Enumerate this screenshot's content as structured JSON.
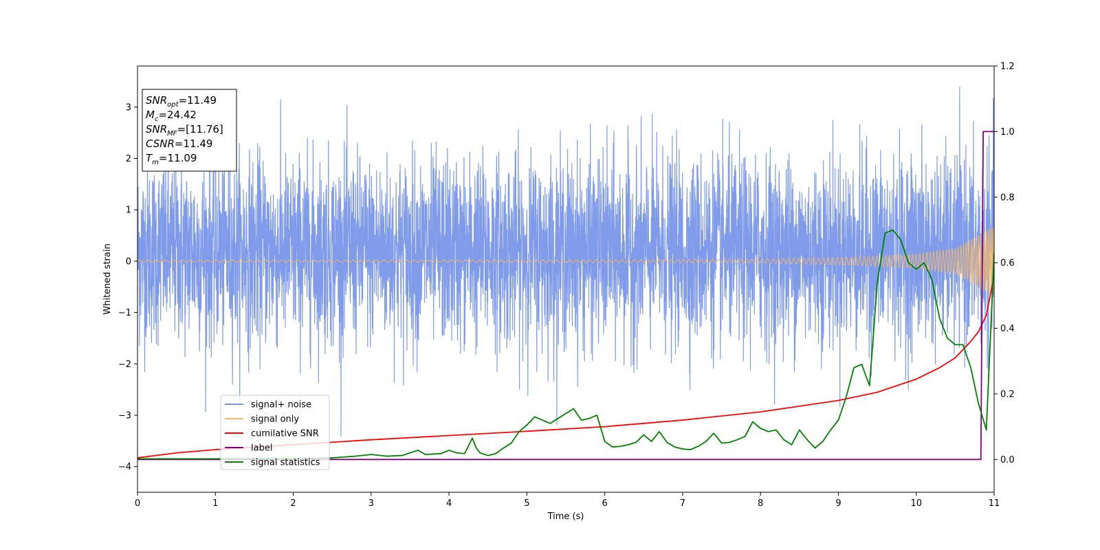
{
  "chart_data": {
    "type": "line",
    "xlabel": "Time (s)",
    "ylabel": "Whitened strain",
    "xlim": [
      0,
      11
    ],
    "ylim_left": [
      -4.5,
      3.8
    ],
    "ylim_right": [
      -0.1,
      1.2
    ],
    "x_ticks": [
      "0",
      "1",
      "2",
      "3",
      "4",
      "5",
      "6",
      "7",
      "8",
      "9",
      "10",
      "11"
    ],
    "y_ticks_left": [
      "3",
      "2",
      "1",
      "0",
      "−1",
      "−2",
      "−3",
      "−4"
    ],
    "y_ticks_right": [
      "1.2",
      "1.0",
      "0.8",
      "0.6",
      "0.4",
      "0.2",
      "0.0"
    ],
    "legend_position": "lower-left",
    "annotation": [
      {
        "main": "SNR",
        "sub": "opt",
        "value": "=11.49"
      },
      {
        "main": "M",
        "sub": "c",
        "value": "=24.42"
      },
      {
        "main": "SNR",
        "sub": "MF",
        "value": "=[11.76]"
      },
      {
        "main": "CSNR",
        "sub": "",
        "value": "=11.49"
      },
      {
        "main": "T",
        "sub": "m",
        "value": "=11.09"
      }
    ],
    "series": [
      {
        "name": "signal+ noise",
        "color": "#7896e8",
        "axis": "left",
        "description": "noisy whitened strain, roughly uniform band between about -2.5 and 3.4"
      },
      {
        "name": "signal only",
        "color": "#f5b86a",
        "axis": "left",
        "envelope": {
          "x": [
            0,
            3,
            6,
            8,
            9,
            10,
            10.5,
            11
          ],
          "amp": [
            0.02,
            0.02,
            0.03,
            0.04,
            0.07,
            0.14,
            0.25,
            0.68
          ]
        }
      },
      {
        "name": "cumilative SNR",
        "color": "#ff0000",
        "axis": "right",
        "x": [
          0,
          0.5,
          1,
          2,
          3,
          4,
          5,
          6,
          7,
          8,
          9,
          9.5,
          10,
          10.3,
          10.5,
          10.7,
          10.8,
          10.9,
          11
        ],
        "y": [
          0.005,
          0.02,
          0.03,
          0.045,
          0.06,
          0.073,
          0.086,
          0.1,
          0.12,
          0.145,
          0.18,
          0.205,
          0.245,
          0.28,
          0.31,
          0.36,
          0.39,
          0.44,
          0.56
        ]
      },
      {
        "name": "label",
        "color": "#800080",
        "axis": "right",
        "x": [
          0,
          10.83,
          10.86,
          11
        ],
        "y": [
          0,
          0,
          1.0,
          1.0
        ]
      },
      {
        "name": "signal statistics",
        "color": "#008000",
        "axis": "right",
        "x": [
          0,
          0.5,
          1,
          1.5,
          2,
          2.5,
          2.8,
          3,
          3.2,
          3.4,
          3.5,
          3.6,
          3.7,
          3.9,
          4,
          4.1,
          4.2,
          4.3,
          4.35,
          4.4,
          4.5,
          4.6,
          4.7,
          4.8,
          4.9,
          5,
          5.1,
          5.2,
          5.3,
          5.4,
          5.5,
          5.6,
          5.7,
          5.8,
          5.9,
          6,
          6.1,
          6.2,
          6.3,
          6.4,
          6.5,
          6.6,
          6.7,
          6.8,
          6.9,
          7,
          7.1,
          7.2,
          7.3,
          7.4,
          7.5,
          7.6,
          7.7,
          7.8,
          7.9,
          8,
          8.1,
          8.2,
          8.3,
          8.4,
          8.5,
          8.6,
          8.7,
          8.8,
          8.9,
          9,
          9.1,
          9.2,
          9.3,
          9.4,
          9.5,
          9.6,
          9.7,
          9.8,
          9.9,
          10,
          10.1,
          10.2,
          10.3,
          10.4,
          10.5,
          10.6,
          10.7,
          10.8,
          10.9,
          11
        ],
        "y": [
          0.002,
          0.002,
          0.002,
          0.003,
          0.002,
          0.005,
          0.01,
          0.015,
          0.01,
          0.012,
          0.02,
          0.028,
          0.015,
          0.018,
          0.028,
          0.02,
          0.018,
          0.065,
          0.035,
          0.02,
          0.012,
          0.018,
          0.035,
          0.05,
          0.085,
          0.105,
          0.13,
          0.12,
          0.11,
          0.125,
          0.14,
          0.155,
          0.12,
          0.125,
          0.135,
          0.055,
          0.038,
          0.04,
          0.045,
          0.052,
          0.075,
          0.055,
          0.085,
          0.052,
          0.038,
          0.032,
          0.03,
          0.04,
          0.055,
          0.08,
          0.05,
          0.052,
          0.06,
          0.07,
          0.115,
          0.095,
          0.085,
          0.09,
          0.06,
          0.045,
          0.09,
          0.06,
          0.035,
          0.055,
          0.09,
          0.12,
          0.19,
          0.28,
          0.29,
          0.225,
          0.54,
          0.69,
          0.7,
          0.67,
          0.6,
          0.58,
          0.6,
          0.55,
          0.43,
          0.37,
          0.35,
          0.35,
          0.28,
          0.17,
          0.09,
          0.63
        ]
      }
    ]
  }
}
